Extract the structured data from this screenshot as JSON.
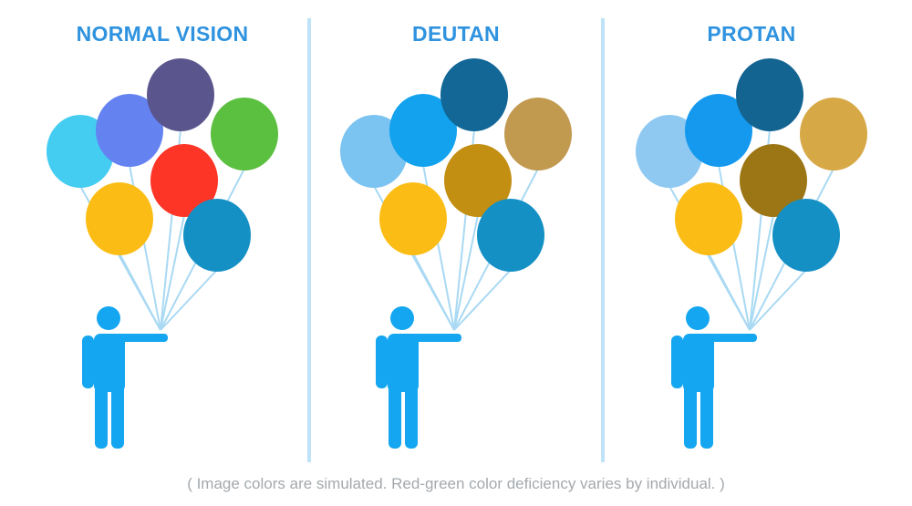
{
  "colors": {
    "title": "#2f93df",
    "figure": "#14a6f0",
    "string": "#a9d9f3",
    "divider": "#bfe3f7",
    "caption": "#a4a9ad"
  },
  "panels": [
    {
      "title": "NORMAL VISION",
      "balloons": [
        {
          "name": "balloon-light-blue",
          "color": "#45cdf1"
        },
        {
          "name": "balloon-periwinkle",
          "color": "#6482f0"
        },
        {
          "name": "balloon-navy",
          "color": "#5a568d"
        },
        {
          "name": "balloon-green",
          "color": "#5bbf40"
        },
        {
          "name": "balloon-red",
          "color": "#fd3526"
        },
        {
          "name": "balloon-yellow",
          "color": "#fbbd15"
        },
        {
          "name": "balloon-teal",
          "color": "#1590c5"
        }
      ]
    },
    {
      "title": "DEUTAN",
      "balloons": [
        {
          "name": "balloon-light-blue",
          "color": "#7bc3f1"
        },
        {
          "name": "balloon-periwinkle",
          "color": "#13a2ee"
        },
        {
          "name": "balloon-navy",
          "color": "#136796"
        },
        {
          "name": "balloon-green",
          "color": "#c19a50"
        },
        {
          "name": "balloon-red",
          "color": "#c38f13"
        },
        {
          "name": "balloon-yellow",
          "color": "#fbbd15"
        },
        {
          "name": "balloon-teal",
          "color": "#1590c5"
        }
      ]
    },
    {
      "title": "PROTAN",
      "balloons": [
        {
          "name": "balloon-light-blue",
          "color": "#8fc8f1"
        },
        {
          "name": "balloon-periwinkle",
          "color": "#1599ee"
        },
        {
          "name": "balloon-navy",
          "color": "#136491"
        },
        {
          "name": "balloon-green",
          "color": "#d7a846"
        },
        {
          "name": "balloon-red",
          "color": "#9c7614"
        },
        {
          "name": "balloon-yellow",
          "color": "#fbbd15"
        },
        {
          "name": "balloon-teal",
          "color": "#1590c5"
        }
      ]
    }
  ],
  "caption": "( Image colors are simulated. Red-green color deficiency varies by individual. )"
}
